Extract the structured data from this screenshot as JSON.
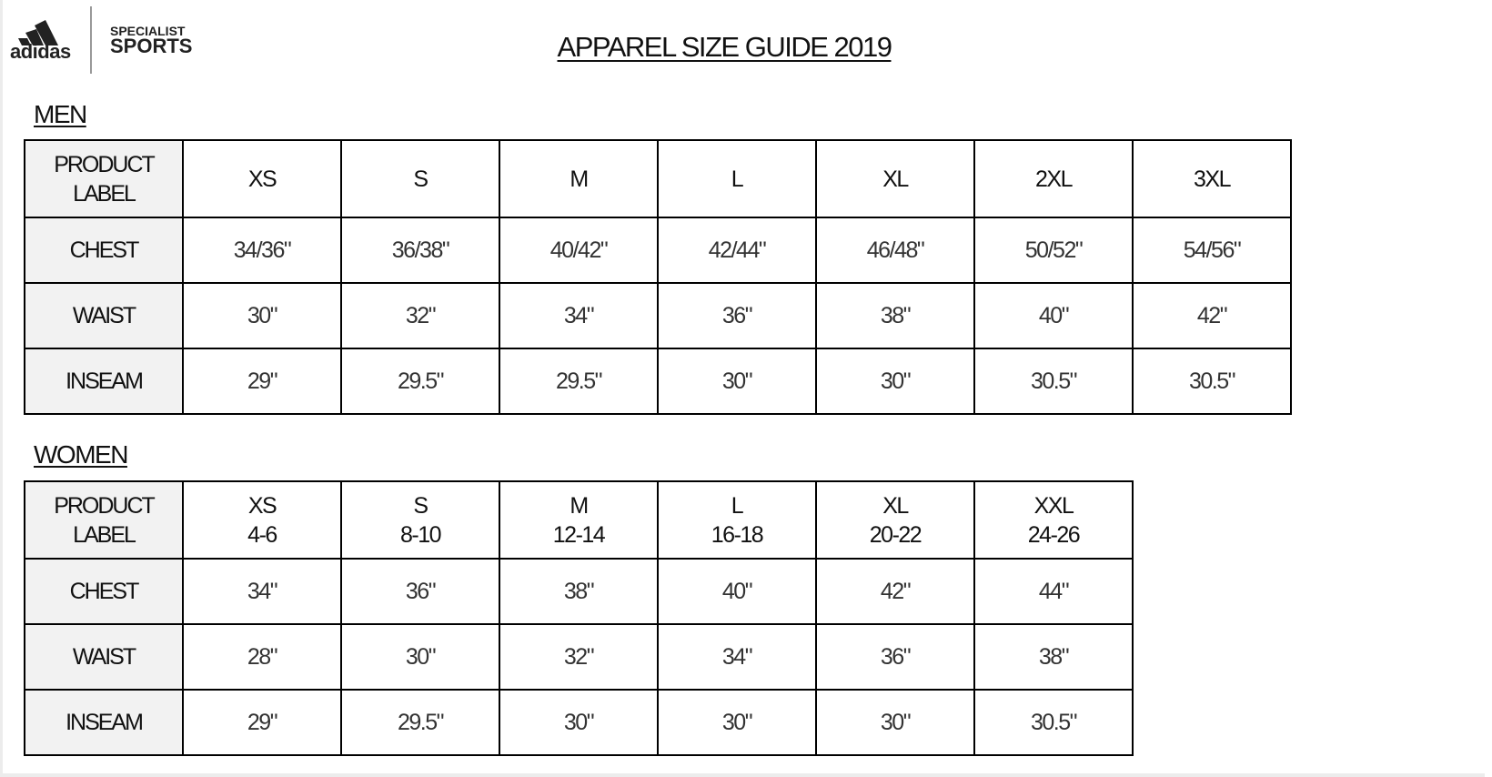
{
  "brand": {
    "logo": "adidas",
    "partner_line1": "SPECIALIST",
    "partner_line2": "SPORTS"
  },
  "title": "APPAREL SIZE GUIDE 2019",
  "men": {
    "heading": "MEN",
    "header_label": "PRODUCT LABEL",
    "sizes": [
      "XS",
      "S",
      "M",
      "L",
      "XL",
      "2XL",
      "3XL"
    ],
    "rows": [
      {
        "label": "CHEST",
        "values": [
          "34/36\"",
          "36/38\"",
          "40/42\"",
          "42/44\"",
          "46/48\"",
          "50/52\"",
          "54/56\""
        ]
      },
      {
        "label": "WAIST",
        "values": [
          "30\"",
          "32\"",
          "34\"",
          "36\"",
          "38\"",
          "40\"",
          "42\""
        ]
      },
      {
        "label": "INSEAM",
        "values": [
          "29\"",
          "29.5\"",
          "29.5\"",
          "30\"",
          "30\"",
          "30.5\"",
          "30.5\""
        ]
      }
    ]
  },
  "women": {
    "heading": "WOMEN",
    "header_label": "PRODUCT LABEL",
    "sizes": [
      {
        "size": "XS",
        "range": "4-6"
      },
      {
        "size": "S",
        "range": "8-10"
      },
      {
        "size": "M",
        "range": "12-14"
      },
      {
        "size": "L",
        "range": "16-18"
      },
      {
        "size": "XL",
        "range": "20-22"
      },
      {
        "size": "XXL",
        "range": "24-26"
      }
    ],
    "rows": [
      {
        "label": "CHEST",
        "values": [
          "34\"",
          "36\"",
          "38\"",
          "40\"",
          "42\"",
          "44\""
        ]
      },
      {
        "label": "WAIST",
        "values": [
          "28\"",
          "30\"",
          "32\"",
          "34\"",
          "36\"",
          "38\""
        ]
      },
      {
        "label": "INSEAM",
        "values": [
          "29\"",
          "29.5\"",
          "30\"",
          "30\"",
          "30\"",
          "30.5\""
        ]
      }
    ]
  }
}
